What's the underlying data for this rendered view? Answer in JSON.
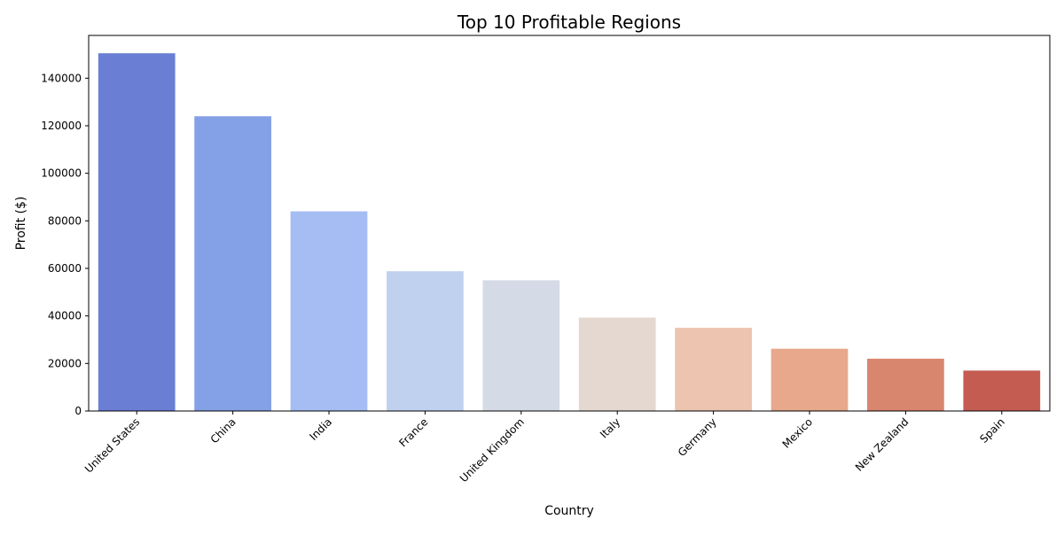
{
  "chart_data": {
    "type": "bar",
    "title": "Top 10 Profitable Regions",
    "xlabel": "Country",
    "ylabel": "Profit ($)",
    "categories": [
      "United States",
      "China",
      "India",
      "France",
      "United Kingdom",
      "Italy",
      "Germany",
      "Mexico",
      "New Zealand",
      "Spain"
    ],
    "values": [
      150500,
      124000,
      84000,
      58800,
      55000,
      39300,
      35000,
      26200,
      22000,
      17000
    ],
    "colors": [
      "#6a7fd4",
      "#84a0e6",
      "#a5bdf3",
      "#c0d1f0",
      "#d5dbe6",
      "#e5d8d0",
      "#ecc4b0",
      "#e7a88c",
      "#d9866f",
      "#c45c52"
    ],
    "ylim": [
      0,
      158000
    ],
    "yticks": [
      0,
      20000,
      40000,
      60000,
      80000,
      100000,
      120000,
      140000
    ],
    "grid": false,
    "legend": "none"
  }
}
